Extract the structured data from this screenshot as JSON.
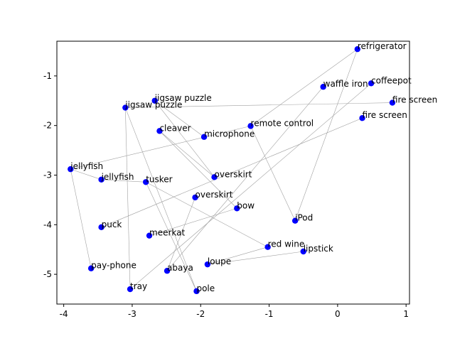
{
  "chart_data": {
    "type": "scatter",
    "title": "",
    "xlabel": "",
    "ylabel": "",
    "xlim": [
      -4.1,
      1.05
    ],
    "ylim": [
      -5.6,
      -0.3
    ],
    "xticks": [
      -4,
      -3,
      -2,
      -1,
      0,
      1
    ],
    "yticks": [
      -1,
      -2,
      -3,
      -4,
      -5
    ],
    "grid": false,
    "point_color": "#0000ff",
    "line_color": "#a0a0a0",
    "points": [
      {
        "label": "refrigerator",
        "x": 0.29,
        "y": -0.46
      },
      {
        "label": "coffeepot",
        "x": 0.49,
        "y": -1.15
      },
      {
        "label": "waffle iron",
        "x": -0.21,
        "y": -1.22
      },
      {
        "label": "fire screen",
        "x": 0.8,
        "y": -1.54
      },
      {
        "label": "fire screen",
        "x": 0.36,
        "y": -1.85
      },
      {
        "label": "jigsaw puzzle",
        "x": -2.67,
        "y": -1.5
      },
      {
        "label": "jigsaw puzzle",
        "x": -3.1,
        "y": -1.64
      },
      {
        "label": "remote control",
        "x": -1.27,
        "y": -2.01
      },
      {
        "label": "cleaver",
        "x": -2.6,
        "y": -2.11
      },
      {
        "label": "microphone",
        "x": -1.95,
        "y": -2.23
      },
      {
        "label": "jellyfish",
        "x": -3.9,
        "y": -2.88
      },
      {
        "label": "jellyfish",
        "x": -3.45,
        "y": -3.09
      },
      {
        "label": "overskirt",
        "x": -1.8,
        "y": -3.04
      },
      {
        "label": "tusker",
        "x": -2.8,
        "y": -3.14
      },
      {
        "label": "overskirt",
        "x": -2.08,
        "y": -3.45
      },
      {
        "label": "bow",
        "x": -1.47,
        "y": -3.67
      },
      {
        "label": "iPod",
        "x": -0.62,
        "y": -3.92
      },
      {
        "label": "puck",
        "x": -3.45,
        "y": -4.05
      },
      {
        "label": "meerkat",
        "x": -2.75,
        "y": -4.22
      },
      {
        "label": "red wine",
        "x": -1.02,
        "y": -4.45
      },
      {
        "label": "lipstick",
        "x": -0.5,
        "y": -4.54
      },
      {
        "label": "loupe",
        "x": -1.9,
        "y": -4.8
      },
      {
        "label": "pay-phone",
        "x": -3.6,
        "y": -4.88
      },
      {
        "label": "abaya",
        "x": -2.49,
        "y": -4.93
      },
      {
        "label": "tray",
        "x": -3.03,
        "y": -5.3
      },
      {
        "label": "pole",
        "x": -2.06,
        "y": -5.34
      }
    ],
    "edges": [
      [
        0,
        7
      ],
      [
        0,
        16
      ],
      [
        1,
        24
      ],
      [
        2,
        23
      ],
      [
        3,
        6
      ],
      [
        4,
        17
      ],
      [
        5,
        9
      ],
      [
        6,
        24
      ],
      [
        6,
        25
      ],
      [
        7,
        16
      ],
      [
        7,
        10
      ],
      [
        8,
        12
      ],
      [
        8,
        15
      ],
      [
        10,
        11
      ],
      [
        10,
        22
      ],
      [
        11,
        13
      ],
      [
        13,
        19
      ],
      [
        13,
        25
      ],
      [
        14,
        23
      ],
      [
        15,
        18
      ],
      [
        19,
        21
      ],
      [
        20,
        21
      ],
      [
        12,
        5
      ]
    ]
  }
}
